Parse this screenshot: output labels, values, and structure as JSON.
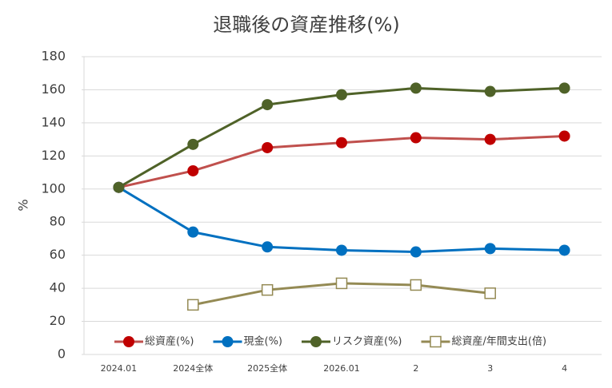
{
  "chart_data": {
    "type": "line",
    "title": "退職後の資産推移(%)",
    "y_label": "%",
    "categories": [
      "2024.01",
      "2024全体",
      "2025全体",
      "2026.01",
      "2",
      "3",
      "4"
    ],
    "series": [
      {
        "name": "総資産(%)",
        "color": "#c0504d",
        "marker_color": "#c00000",
        "marker": "circle",
        "values": [
          101,
          111,
          125,
          128,
          131,
          130,
          132
        ]
      },
      {
        "name": "現金(%)",
        "color": "#0070c0",
        "marker_color": "#0070c0",
        "marker": "circle",
        "values": [
          101,
          74,
          65,
          63,
          62,
          64,
          63
        ]
      },
      {
        "name": "リスク資産(%)",
        "color": "#4f6228",
        "marker_color": "#4f6228",
        "marker": "circle",
        "values": [
          101,
          127,
          151,
          157,
          161,
          159,
          161
        ]
      },
      {
        "name": "総資産/年間支出(倍)",
        "color": "#948a54",
        "marker_color": "#948a54",
        "marker": "square",
        "values": [
          null,
          30,
          39,
          43,
          42,
          37,
          null
        ]
      }
    ],
    "ylim": [
      0,
      180
    ],
    "yticks": [
      0,
      20,
      40,
      60,
      80,
      100,
      120,
      140,
      160,
      180
    ],
    "grid": true,
    "legend": "bottom"
  }
}
